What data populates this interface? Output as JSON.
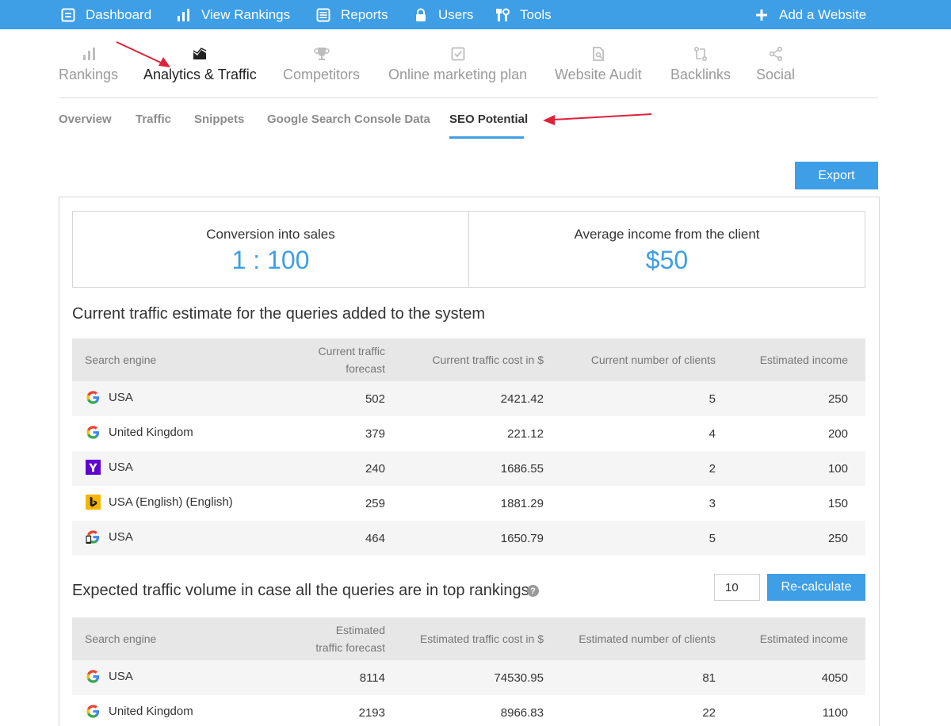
{
  "topnav": {
    "dashboard": "Dashboard",
    "view_rankings": "View Rankings",
    "reports": "Reports",
    "users": "Users",
    "tools": "Tools",
    "add_website": "Add a Website"
  },
  "section_tabs": {
    "rankings": "Rankings",
    "analytics": "Analytics & Traffic",
    "competitors": "Competitors",
    "online_marketing": "Online marketing plan",
    "website_audit": "Website Audit",
    "backlinks": "Backlinks",
    "social": "Social"
  },
  "sub_tabs": {
    "overview": "Overview",
    "traffic": "Traffic",
    "snippets": "Snippets",
    "gsc": "Google Search Console Data",
    "seo_potential": "SEO Potential"
  },
  "export_label": "Export",
  "stats": {
    "conversion_label": "Conversion into sales",
    "conversion_value": "1 : 100",
    "income_label": "Average income from the client",
    "income_value": "$50"
  },
  "current_section": {
    "title": "Current traffic estimate for the queries added to the system",
    "headers": {
      "engine": "Search engine",
      "forecast": "Current traffic forecast",
      "cost": "Current traffic cost in $",
      "clients": "Current number of clients",
      "income": "Estimated income"
    },
    "rows": [
      {
        "engine": "google",
        "region": "USA",
        "forecast": "502",
        "cost": "2421.42",
        "clients": "5",
        "income": "250"
      },
      {
        "engine": "google",
        "region": "United Kingdom",
        "forecast": "379",
        "cost": "221.12",
        "clients": "4",
        "income": "200"
      },
      {
        "engine": "yahoo",
        "region": "USA",
        "forecast": "240",
        "cost": "1686.55",
        "clients": "2",
        "income": "100"
      },
      {
        "engine": "bing",
        "region": "USA (English) (English)",
        "forecast": "259",
        "cost": "1881.29",
        "clients": "3",
        "income": "150"
      },
      {
        "engine": "google-mobile",
        "region": "USA",
        "forecast": "464",
        "cost": "1650.79",
        "clients": "5",
        "income": "250"
      }
    ]
  },
  "expected_section": {
    "title": "Expected traffic volume in case all the queries are in top rankings",
    "help": "?",
    "input_value": "10",
    "recalc_label": "Re-calculate",
    "headers": {
      "engine": "Search engine",
      "forecast": "Estimated traffic forecast",
      "cost": "Estimated traffic cost in $",
      "clients": "Estimated number of clients",
      "income": "Estimated income"
    },
    "rows": [
      {
        "engine": "google",
        "region": "USA",
        "forecast": "8114",
        "cost": "74530.95",
        "clients": "81",
        "income": "4050"
      },
      {
        "engine": "google",
        "region": "United Kingdom",
        "forecast": "2193",
        "cost": "8966.83",
        "clients": "22",
        "income": "1100"
      }
    ]
  },
  "colors": {
    "accent": "#3e9ee6",
    "arrow": "#e0203a"
  }
}
